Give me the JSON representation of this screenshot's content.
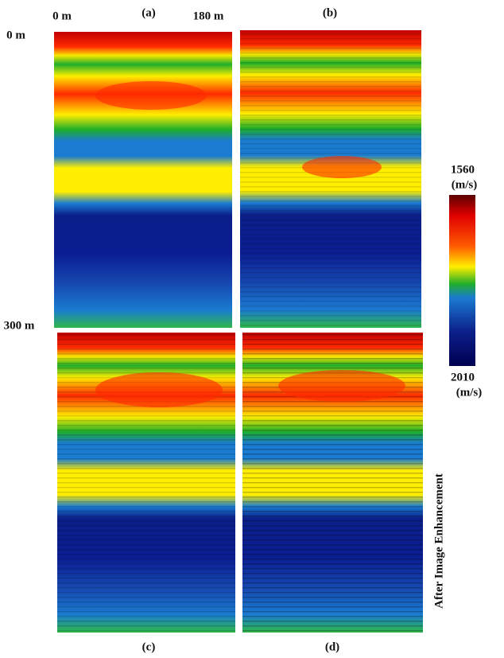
{
  "figure": {
    "panels": [
      {
        "label": "(a)"
      },
      {
        "label": "(b)"
      },
      {
        "label": "(c)"
      },
      {
        "label": "(d)"
      }
    ],
    "x_axis": {
      "start": "0 m",
      "end": "180 m"
    },
    "y_axis": {
      "start": "0 m",
      "end": "300 m"
    },
    "colorbar": {
      "top_value": "1560",
      "top_unit": "(m/s)",
      "bottom_value": "2010",
      "bottom_unit": "(m/s)"
    },
    "side_note": "After Image Enhancement"
  }
}
